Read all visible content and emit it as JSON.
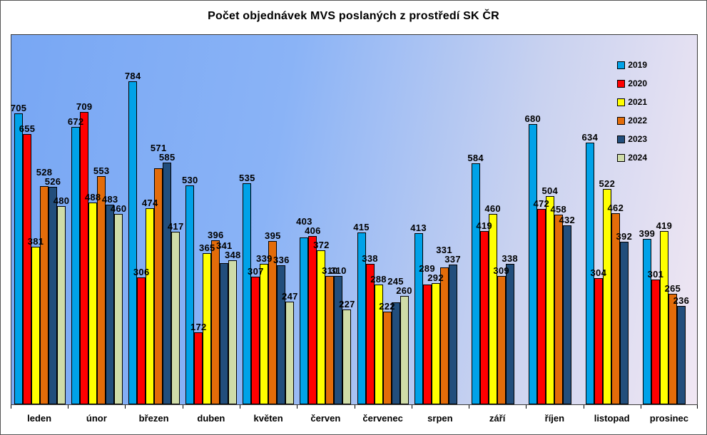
{
  "title": "Počet objednávek MVS poslaných z prostředí SK ČR",
  "chart_data": {
    "type": "bar",
    "title": "Počet objednávek MVS poslaných z prostředí SK ČR",
    "xlabel": "",
    "ylabel": "",
    "ylim": [
      0,
      900
    ],
    "grid": false,
    "value_labels": true,
    "legend_position": "top-right",
    "plot_background": "gradient blue to pale pink",
    "categories": [
      "leden",
      "únor",
      "březen",
      "duben",
      "květen",
      "červen",
      "červenec",
      "srpen",
      "září",
      "říjen",
      "listopad",
      "prosinec"
    ],
    "series": [
      {
        "name": "2019",
        "color": "#00a2e8",
        "values": [
          705,
          672,
          784,
          530,
          535,
          403,
          415,
          413,
          584,
          680,
          634,
          399
        ]
      },
      {
        "name": "2020",
        "color": "#ff0000",
        "values": [
          655,
          709,
          306,
          172,
          307,
          406,
          338,
          289,
          419,
          472,
          304,
          301
        ]
      },
      {
        "name": "2021",
        "color": "#ffff00",
        "values": [
          381,
          488,
          474,
          365,
          339,
          372,
          288,
          292,
          460,
          504,
          522,
          419
        ]
      },
      {
        "name": "2022",
        "color": "#e36c09",
        "values": [
          528,
          553,
          571,
          396,
          395,
          310,
          222,
          331,
          309,
          458,
          462,
          265
        ]
      },
      {
        "name": "2023",
        "color": "#224e7c",
        "values": [
          526,
          483,
          585,
          341,
          336,
          310,
          245,
          337,
          338,
          432,
          392,
          236
        ]
      },
      {
        "name": "2024",
        "color": "#cfdca8",
        "values": [
          480,
          460,
          417,
          348,
          247,
          227,
          260,
          null,
          null,
          null,
          null,
          null
        ]
      }
    ]
  }
}
